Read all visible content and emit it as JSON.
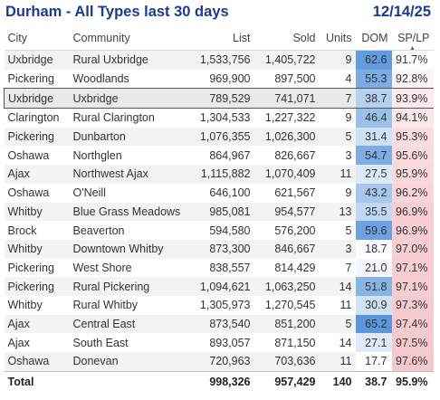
{
  "header": {
    "title": "Durham - All Types last 30 days",
    "date": "12/14/25"
  },
  "columns": {
    "city": "City",
    "community": "Community",
    "list": "List",
    "sold": "Sold",
    "units": "Units",
    "dom": "DOM",
    "splp": "SP/LP"
  },
  "rows": [
    {
      "city": "Uxbridge",
      "community": "Rural Uxbridge",
      "list": "1,533,756",
      "sold": "1,405,722",
      "units": "9",
      "dom": "62.6",
      "splp": "91.7%"
    },
    {
      "city": "Pickering",
      "community": "Woodlands",
      "list": "969,900",
      "sold": "897,500",
      "units": "4",
      "dom": "55.3",
      "splp": "92.8%"
    },
    {
      "city": "Uxbridge",
      "community": "Uxbridge",
      "list": "789,529",
      "sold": "741,071",
      "units": "7",
      "dom": "38.7",
      "splp": "93.9%"
    },
    {
      "city": "Clarington",
      "community": "Rural Clarington",
      "list": "1,304,533",
      "sold": "1,227,322",
      "units": "9",
      "dom": "46.4",
      "splp": "94.1%"
    },
    {
      "city": "Pickering",
      "community": "Dunbarton",
      "list": "1,076,355",
      "sold": "1,026,300",
      "units": "5",
      "dom": "31.4",
      "splp": "95.3%"
    },
    {
      "city": "Oshawa",
      "community": "Northglen",
      "list": "864,967",
      "sold": "826,667",
      "units": "3",
      "dom": "54.7",
      "splp": "95.6%"
    },
    {
      "city": "Ajax",
      "community": "Northwest Ajax",
      "list": "1,115,882",
      "sold": "1,070,409",
      "units": "11",
      "dom": "27.5",
      "splp": "95.9%"
    },
    {
      "city": "Oshawa",
      "community": "O'Neill",
      "list": "646,100",
      "sold": "621,567",
      "units": "9",
      "dom": "43.2",
      "splp": "96.2%"
    },
    {
      "city": "Whitby",
      "community": "Blue Grass Meadows",
      "list": "985,081",
      "sold": "954,577",
      "units": "13",
      "dom": "35.5",
      "splp": "96.9%"
    },
    {
      "city": "Brock",
      "community": "Beaverton",
      "list": "594,580",
      "sold": "576,200",
      "units": "5",
      "dom": "59.6",
      "splp": "96.9%"
    },
    {
      "city": "Whitby",
      "community": "Downtown Whitby",
      "list": "873,300",
      "sold": "846,667",
      "units": "3",
      "dom": "18.7",
      "splp": "97.0%"
    },
    {
      "city": "Pickering",
      "community": "West Shore",
      "list": "838,557",
      "sold": "814,429",
      "units": "7",
      "dom": "21.0",
      "splp": "97.1%"
    },
    {
      "city": "Pickering",
      "community": "Rural Pickering",
      "list": "1,094,621",
      "sold": "1,063,250",
      "units": "14",
      "dom": "51.8",
      "splp": "97.1%"
    },
    {
      "city": "Whitby",
      "community": "Rural Whitby",
      "list": "1,305,973",
      "sold": "1,270,545",
      "units": "11",
      "dom": "30.9",
      "splp": "97.3%"
    },
    {
      "city": "Ajax",
      "community": "Central East",
      "list": "873,540",
      "sold": "851,200",
      "units": "5",
      "dom": "65.2",
      "splp": "97.4%"
    },
    {
      "city": "Ajax",
      "community": "South East",
      "list": "893,057",
      "sold": "871,150",
      "units": "14",
      "dom": "27.1",
      "splp": "97.5%"
    },
    {
      "city": "Oshawa",
      "community": "Donevan",
      "list": "720,963",
      "sold": "703,636",
      "units": "11",
      "dom": "17.7",
      "splp": "97.6%"
    }
  ],
  "total": {
    "label": "Total",
    "list": "998,326",
    "sold": "957,429",
    "units": "140",
    "dom": "38.7",
    "splp": "95.9%"
  },
  "sort": {
    "column": "SP/LP",
    "direction": "ascending",
    "icon": "sort-ascending-icon"
  },
  "selected_row": 2,
  "colors": {
    "title": "#1a3c8c",
    "dom_low": "#ffffff",
    "dom_high": "#5a96dc",
    "splp_low": "#ffffff",
    "splp_high": "#f6c8cc"
  }
}
